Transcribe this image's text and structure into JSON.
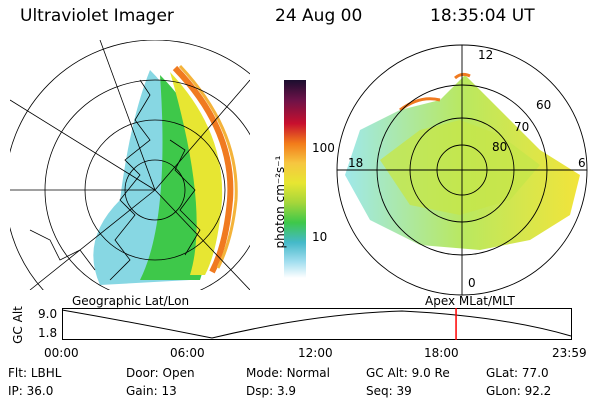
{
  "header": {
    "instrument": "Ultraviolet Imager",
    "date": "24 Aug 00",
    "time": "18:35:04 UT"
  },
  "colorbar": {
    "unit_label": "photon cm⁻²s⁻¹",
    "ticks": [
      "100",
      "10"
    ]
  },
  "polar_plot": {
    "mlt_labels": {
      "top": "12",
      "left": "18",
      "right": "6",
      "bottom": "0"
    },
    "lat_labels": [
      "60",
      "70",
      "80"
    ]
  },
  "map_captions": {
    "left": "Geographic Lat/Lon",
    "right": "Apex MLat/MLT"
  },
  "altitude_plot": {
    "ylabel": "GC Alt",
    "y_ticks": [
      "9.0",
      "1.8"
    ],
    "x_ticks": [
      "00:00",
      "06:00",
      "12:00",
      "18:00",
      "23:59"
    ],
    "marker_time_hours": 18.58,
    "curve_color": "#000000",
    "marker_color": "#ff0000"
  },
  "info": {
    "row1": [
      {
        "label": "Flt:",
        "value": "LBHL"
      },
      {
        "label": "Door:",
        "value": "Open"
      },
      {
        "label": "Mode:",
        "value": "Normal"
      },
      {
        "label": "GC Alt:",
        "value": "9.0 Re"
      },
      {
        "label": "GLat:",
        "value": "77.0"
      }
    ],
    "row2": [
      {
        "label": "IP:",
        "value": "36.0"
      },
      {
        "label": "Gain:",
        "value": "13"
      },
      {
        "label": "Dsp:",
        "value": "3.9"
      },
      {
        "label": "Seq:",
        "value": "39"
      },
      {
        "label": "GLon:",
        "value": "92.2"
      }
    ]
  }
}
